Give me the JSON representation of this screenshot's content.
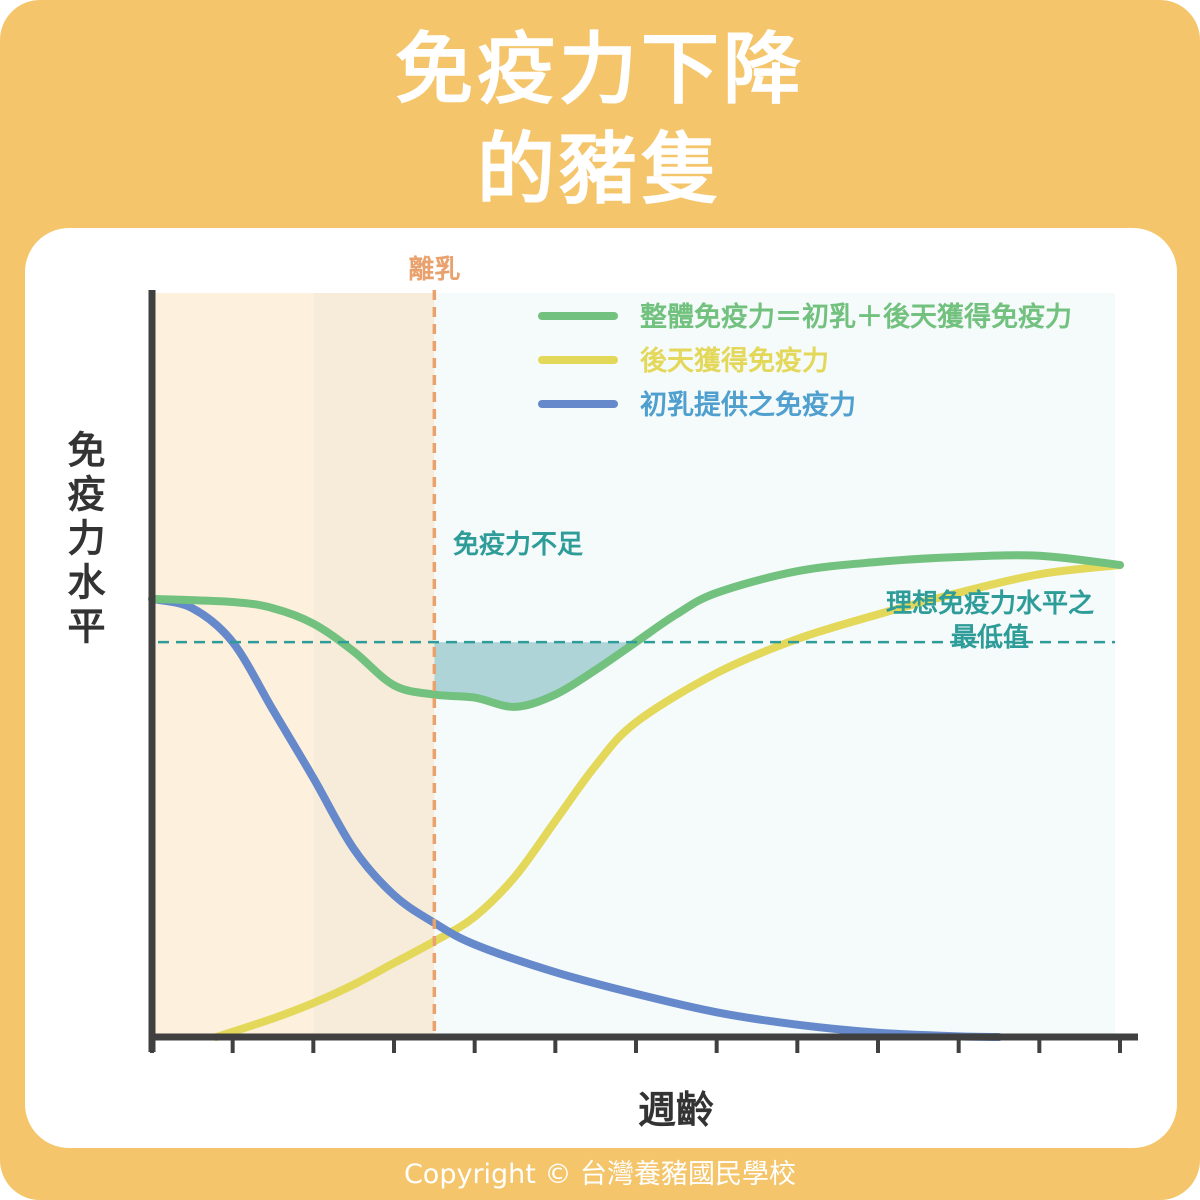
{
  "title_line1": "免疫力下降",
  "title_line2": "的豬隻",
  "copyright": "Copyright © 台灣養豬國民學校",
  "colors": {
    "frame": "#F4C56A",
    "total": "#72C17E",
    "acquired": "#E3D85A",
    "colostrum": "#6589CA",
    "threshold": "#2E9C98",
    "weaning": "#E9A26E",
    "deficit_fill": "#AED4D8",
    "axis": "#404040"
  },
  "chart_data": {
    "type": "line",
    "ylabel": "免疫力水平",
    "xlabel": "週齡",
    "xlim": [
      0,
      12
    ],
    "ylim": [
      0,
      100
    ],
    "xticks": [
      0,
      1,
      2,
      3,
      4,
      5,
      6,
      7,
      8,
      9,
      10,
      11,
      12
    ],
    "series": [
      {
        "name": "整體免疫力＝初乳＋後天獲得免疫力",
        "key": "total",
        "x": [
          0,
          1,
          1.5,
          2,
          2.5,
          3,
          3.5,
          4,
          4.5,
          5,
          5.5,
          6,
          6.5,
          7,
          8,
          9,
          10,
          11,
          12
        ],
        "y": [
          71,
          70.5,
          69.5,
          67,
          62.5,
          57,
          55.5,
          55,
          53.5,
          55.5,
          59.5,
          64,
          68.5,
          72,
          75.5,
          77,
          77.8,
          78,
          76.5
        ]
      },
      {
        "name": "後天獲得免疫力",
        "key": "acquired",
        "x": [
          0.8,
          1.5,
          2,
          2.5,
          3,
          3.5,
          4,
          4.5,
          5,
          5.5,
          6,
          7,
          8,
          9,
          10,
          11,
          12
        ],
        "y": [
          0,
          3,
          5.5,
          8.5,
          12,
          15.5,
          19.5,
          26,
          35,
          44,
          51,
          59,
          64.5,
          68.5,
          72,
          75,
          76.5
        ]
      },
      {
        "name": "初乳提供之免疫力",
        "key": "colostrum",
        "x": [
          0,
          0.5,
          1,
          1.5,
          2,
          2.5,
          3,
          3.5,
          4,
          5,
          6,
          7,
          8,
          9,
          10,
          10.5
        ],
        "y": [
          71,
          69.5,
          64,
          53,
          42,
          30.5,
          23,
          18.5,
          15,
          10.5,
          7,
          4,
          2,
          0.7,
          0.1,
          0
        ]
      }
    ],
    "annotations": {
      "weaning": {
        "label": "離乳",
        "x": 3.5
      },
      "threshold": {
        "y": 64,
        "caption": "免疫力不足",
        "label_line1": "理想免疫力水平之",
        "label_line2": "最低值"
      }
    },
    "legend_position": "top-right",
    "grid": false
  }
}
